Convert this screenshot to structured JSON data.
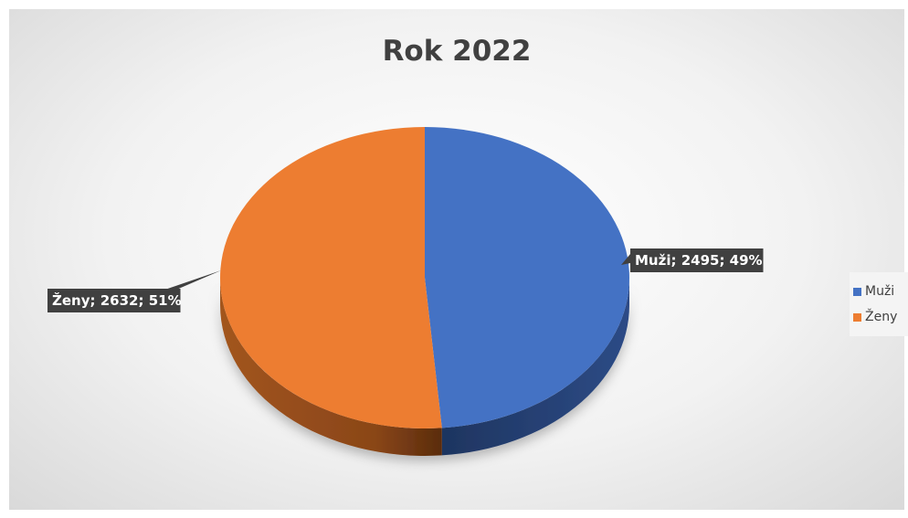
{
  "chart_data": {
    "type": "pie",
    "title": "Rok 2022",
    "slices": [
      {
        "label": "Muži",
        "value": 2495,
        "percent": "49%",
        "color": "#4472C4",
        "data_label": "Muži; 2495; 49%"
      },
      {
        "label": "Ženy",
        "value": 2632,
        "percent": "51%",
        "color": "#ED7D31",
        "data_label": "Ženy; 2632; 51%"
      }
    ],
    "legend_position": "right",
    "style": "3d"
  },
  "legend": {
    "items": [
      {
        "label": "Muži",
        "color": "#4472C4"
      },
      {
        "label": "Ženy",
        "color": "#ED7D31"
      }
    ]
  }
}
